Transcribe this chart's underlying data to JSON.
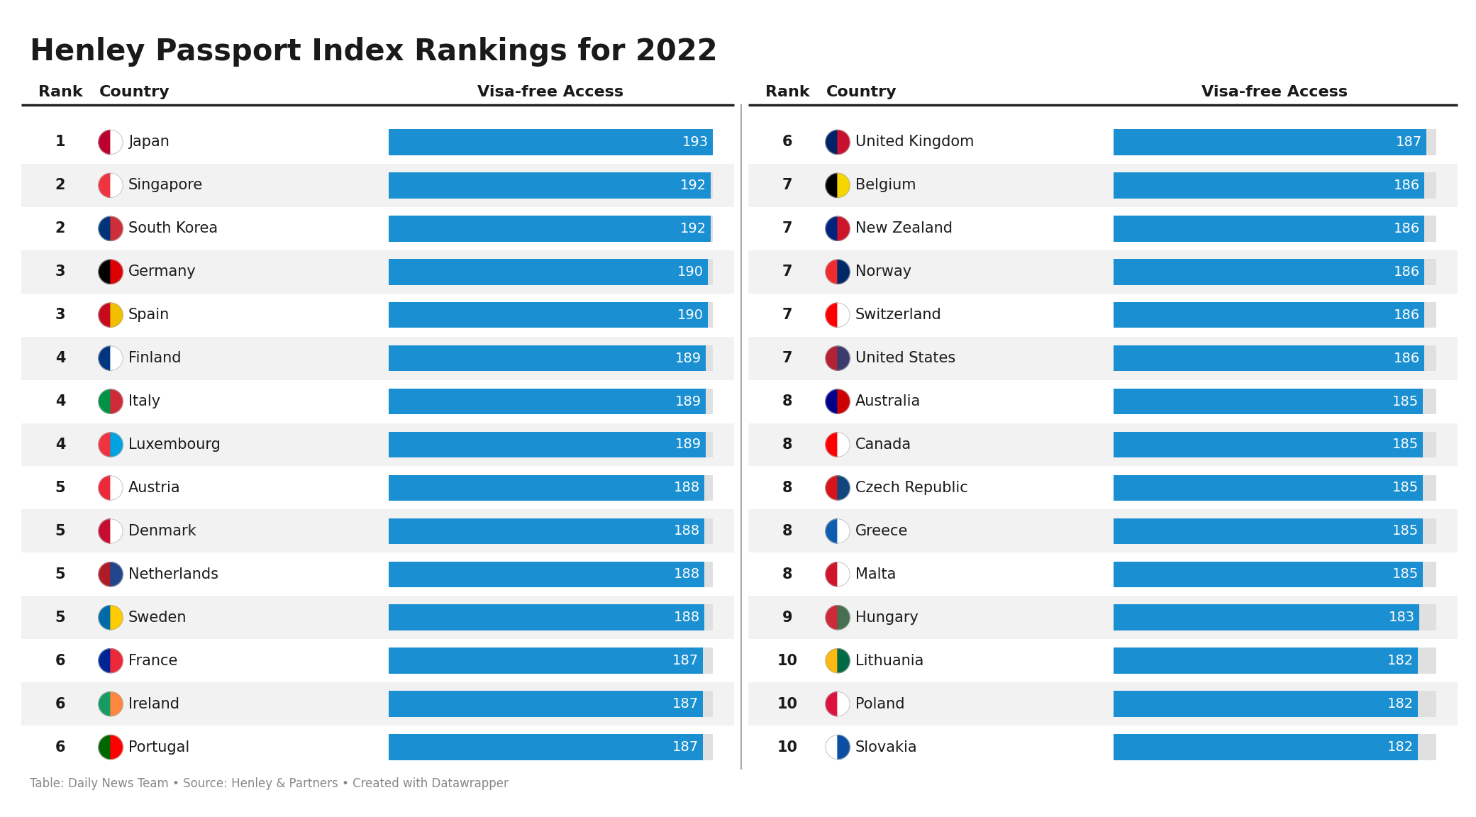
{
  "title": "Henley Passport Index Rankings for 2022",
  "title_fontsize": 30,
  "background_color": "#ffffff",
  "bar_color": "#1a8fd1",
  "bar_bg_color": "#e0e0e0",
  "header_line_color": "#222222",
  "row_alt_color": "#f2f2f2",
  "row_color": "#ffffff",
  "text_color": "#1a1a1a",
  "rank_fontsize": 15,
  "country_fontsize": 15,
  "value_fontsize": 14,
  "header_fontsize": 16,
  "footer_text": "Table: Daily News Team • Source: Henley & Partners • Created with Datawrapper",
  "footer_fontsize": 12,
  "left_data": [
    {
      "rank": "1",
      "country": "Japan",
      "value": 193,
      "flag_colors": [
        "#bc002d",
        "#ffffff"
      ]
    },
    {
      "rank": "2",
      "country": "Singapore",
      "value": 192,
      "flag_colors": [
        "#ef3340",
        "#ffffff"
      ]
    },
    {
      "rank": "2",
      "country": "South Korea",
      "value": 192,
      "flag_colors": [
        "#003478",
        "#cd2e3a"
      ]
    },
    {
      "rank": "3",
      "country": "Germany",
      "value": 190,
      "flag_colors": [
        "#000000",
        "#dd0000"
      ]
    },
    {
      "rank": "3",
      "country": "Spain",
      "value": 190,
      "flag_colors": [
        "#c60b1e",
        "#f1bf00"
      ]
    },
    {
      "rank": "4",
      "country": "Finland",
      "value": 189,
      "flag_colors": [
        "#003580",
        "#ffffff"
      ]
    },
    {
      "rank": "4",
      "country": "Italy",
      "value": 189,
      "flag_colors": [
        "#009246",
        "#ce2b37"
      ]
    },
    {
      "rank": "4",
      "country": "Luxembourg",
      "value": 189,
      "flag_colors": [
        "#ef3340",
        "#00a3e0"
      ]
    },
    {
      "rank": "5",
      "country": "Austria",
      "value": 188,
      "flag_colors": [
        "#ed2939",
        "#ffffff"
      ]
    },
    {
      "rank": "5",
      "country": "Denmark",
      "value": 188,
      "flag_colors": [
        "#c60c30",
        "#ffffff"
      ]
    },
    {
      "rank": "5",
      "country": "Netherlands",
      "value": 188,
      "flag_colors": [
        "#ae1c28",
        "#21468b"
      ]
    },
    {
      "rank": "5",
      "country": "Sweden",
      "value": 188,
      "flag_colors": [
        "#006aa7",
        "#fecc02"
      ]
    },
    {
      "rank": "6",
      "country": "France",
      "value": 187,
      "flag_colors": [
        "#002395",
        "#ed2939"
      ]
    },
    {
      "rank": "6",
      "country": "Ireland",
      "value": 187,
      "flag_colors": [
        "#169b62",
        "#ff883e"
      ]
    },
    {
      "rank": "6",
      "country": "Portugal",
      "value": 187,
      "flag_colors": [
        "#006600",
        "#ff0000"
      ]
    }
  ],
  "right_data": [
    {
      "rank": "6",
      "country": "United Kingdom",
      "value": 187,
      "flag_colors": [
        "#012169",
        "#c8102e"
      ]
    },
    {
      "rank": "7",
      "country": "Belgium",
      "value": 186,
      "flag_colors": [
        "#000000",
        "#f7d600"
      ]
    },
    {
      "rank": "7",
      "country": "New Zealand",
      "value": 186,
      "flag_colors": [
        "#00247d",
        "#cc142b"
      ]
    },
    {
      "rank": "7",
      "country": "Norway",
      "value": 186,
      "flag_colors": [
        "#ef2b2d",
        "#002868"
      ]
    },
    {
      "rank": "7",
      "country": "Switzerland",
      "value": 186,
      "flag_colors": [
        "#ff0000",
        "#ffffff"
      ]
    },
    {
      "rank": "7",
      "country": "United States",
      "value": 186,
      "flag_colors": [
        "#b22234",
        "#3c3b6e"
      ]
    },
    {
      "rank": "8",
      "country": "Australia",
      "value": 185,
      "flag_colors": [
        "#00008b",
        "#cc0000"
      ]
    },
    {
      "rank": "8",
      "country": "Canada",
      "value": 185,
      "flag_colors": [
        "#ff0000",
        "#ffffff"
      ]
    },
    {
      "rank": "8",
      "country": "Czech Republic",
      "value": 185,
      "flag_colors": [
        "#d7141a",
        "#11457e"
      ]
    },
    {
      "rank": "8",
      "country": "Greece",
      "value": 185,
      "flag_colors": [
        "#0d5eaf",
        "#ffffff"
      ]
    },
    {
      "rank": "8",
      "country": "Malta",
      "value": 185,
      "flag_colors": [
        "#cf142b",
        "#ffffff"
      ]
    },
    {
      "rank": "9",
      "country": "Hungary",
      "value": 183,
      "flag_colors": [
        "#ce2939",
        "#477050"
      ]
    },
    {
      "rank": "10",
      "country": "Lithuania",
      "value": 182,
      "flag_colors": [
        "#fdb913",
        "#006a44"
      ]
    },
    {
      "rank": "10",
      "country": "Poland",
      "value": 182,
      "flag_colors": [
        "#dc143c",
        "#ffffff"
      ]
    },
    {
      "rank": "10",
      "country": "Slovakia",
      "value": 182,
      "flag_colors": [
        "#ffffff",
        "#0b4ea2"
      ]
    }
  ],
  "val_baseline": 0,
  "val_max": 193
}
